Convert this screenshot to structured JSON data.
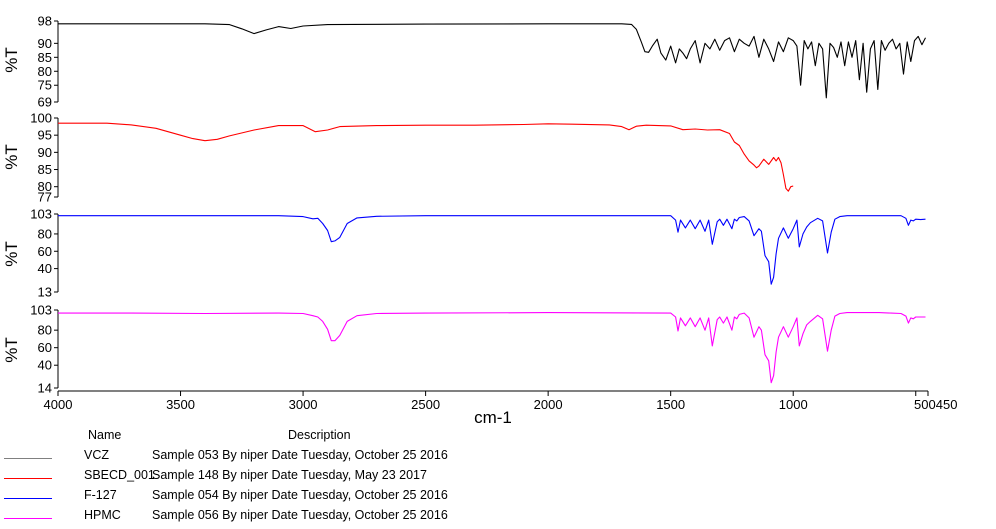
{
  "chart_data": {
    "type": "line",
    "x_label": "cm-1",
    "x_ticks": [
      "4000",
      "3500",
      "3000",
      "2500",
      "2000",
      "1500",
      "1000",
      "500450"
    ],
    "x_range": [
      4000,
      450
    ],
    "panels": [
      {
        "name": "VCZ",
        "color": "#000000",
        "ylabel": "%T",
        "y_ticks": [
          "98",
          "90",
          "85",
          "80",
          "75",
          "69"
        ],
        "y_range": [
          69,
          98
        ],
        "x": [
          4000,
          3700,
          3400,
          3300,
          3250,
          3200,
          3150,
          3100,
          3050,
          3000,
          2900,
          2800,
          2500,
          2000,
          1700,
          1660,
          1640,
          1620,
          1605,
          1590,
          1575,
          1555,
          1540,
          1520,
          1500,
          1480,
          1465,
          1450,
          1435,
          1420,
          1400,
          1380,
          1360,
          1340,
          1320,
          1300,
          1280,
          1260,
          1240,
          1220,
          1200,
          1180,
          1160,
          1140,
          1120,
          1100,
          1080,
          1060,
          1040,
          1020,
          1000,
          985,
          970,
          955,
          940,
          925,
          910,
          895,
          880,
          865,
          850,
          835,
          820,
          805,
          790,
          775,
          760,
          745,
          730,
          715,
          700,
          685,
          670,
          655,
          640,
          625,
          610,
          595,
          580,
          565,
          550,
          535,
          520,
          505,
          490,
          475,
          460
        ],
        "y": [
          97,
          97,
          97,
          96.7,
          95.2,
          93.5,
          94.8,
          96,
          95.3,
          96.2,
          96.7,
          96.8,
          96.9,
          97,
          97,
          96.8,
          95,
          90.5,
          87,
          86.8,
          89,
          91.5,
          86.5,
          84,
          89,
          83,
          88,
          86.5,
          84.5,
          88,
          91,
          83,
          90,
          88,
          91.5,
          87.5,
          91,
          92,
          87,
          91.5,
          90,
          89,
          92.5,
          85,
          91.5,
          88,
          83.5,
          90.5,
          87,
          92,
          91,
          89,
          75,
          91,
          88,
          90.5,
          82,
          90,
          88,
          70.5,
          90,
          88.5,
          85,
          90.5,
          82,
          90.5,
          85,
          91,
          77,
          90,
          72.5,
          88,
          91,
          73.5,
          91,
          87.5,
          90,
          91.5,
          88,
          90,
          79,
          90.5,
          83.5,
          91,
          92.5,
          89.5,
          92
        ]
      },
      {
        "name": "SBECD_001",
        "color": "#ff0000",
        "ylabel": "%T",
        "y_ticks": [
          "100",
          "95",
          "90",
          "85",
          "80",
          "77"
        ],
        "y_range": [
          77,
          100
        ],
        "x": [
          4000,
          3900,
          3800,
          3700,
          3600,
          3500,
          3450,
          3400,
          3350,
          3300,
          3200,
          3100,
          3000,
          2950,
          2900,
          2850,
          2700,
          2500,
          2300,
          2100,
          2000,
          1900,
          1750,
          1700,
          1670,
          1640,
          1600,
          1500,
          1450,
          1400,
          1350,
          1300,
          1260,
          1240,
          1220,
          1200,
          1180,
          1160,
          1150,
          1140,
          1120,
          1100,
          1080,
          1070,
          1060,
          1050,
          1040,
          1030,
          1020,
          1010,
          1000
        ],
        "y": [
          98.5,
          98.5,
          98.5,
          98,
          97,
          95,
          94,
          93.4,
          93.8,
          94.8,
          96.5,
          97.8,
          97.8,
          96,
          96.5,
          97.5,
          97.8,
          97.9,
          97.9,
          98.1,
          98.3,
          98.2,
          98,
          97.5,
          96.6,
          97.6,
          97.9,
          97.7,
          96.6,
          96.8,
          96.5,
          96.6,
          95.5,
          93,
          92,
          89.5,
          87.5,
          86.3,
          85.5,
          86,
          88,
          86.5,
          88.5,
          87.5,
          88.5,
          87,
          83.5,
          79.5,
          78.7,
          80,
          80.2
        ]
      },
      {
        "name": "F-127",
        "color": "#0000ff",
        "ylabel": "%T",
        "y_ticks": [
          "103",
          "80",
          "60",
          "40",
          "13"
        ],
        "y_range": [
          13,
          103
        ],
        "x": [
          4000,
          3700,
          3400,
          3100,
          3000,
          2960,
          2940,
          2920,
          2900,
          2885,
          2870,
          2850,
          2820,
          2780,
          2700,
          2500,
          2000,
          1500,
          1480,
          1470,
          1460,
          1440,
          1420,
          1400,
          1380,
          1360,
          1345,
          1330,
          1310,
          1300,
          1285,
          1270,
          1250,
          1240,
          1230,
          1220,
          1200,
          1180,
          1160,
          1150,
          1140,
          1130,
          1115,
          1100,
          1090,
          1080,
          1070,
          1060,
          1040,
          1020,
          1000,
          985,
          975,
          960,
          945,
          930,
          900,
          880,
          860,
          845,
          830,
          810,
          780,
          740,
          700,
          650,
          600,
          560,
          540,
          530,
          520,
          510,
          500,
          480,
          460
        ],
        "y": [
          101,
          101,
          101,
          101,
          100,
          97.5,
          98,
          92,
          84,
          71,
          72,
          76,
          92,
          98.5,
          100.3,
          101,
          101,
          101,
          96,
          82,
          96,
          87,
          96,
          86,
          96,
          83,
          96,
          68,
          94,
          97,
          90,
          97,
          86,
          97,
          95,
          99,
          100,
          95,
          78,
          82,
          86,
          83,
          55,
          48,
          22,
          30,
          57,
          75,
          87,
          75,
          86,
          96,
          65,
          80,
          88,
          93,
          98,
          95,
          58,
          82,
          97,
          100,
          101,
          101,
          101,
          101,
          101,
          101,
          98,
          90,
          96,
          95,
          97,
          96.5,
          97
        ]
      },
      {
        "name": "HPMC",
        "color": "#ff00ff",
        "ylabel": "%T",
        "y_ticks": [
          "103",
          "80",
          "60",
          "40",
          "14"
        ],
        "y_range": [
          14,
          103
        ],
        "x": [
          4000,
          3700,
          3400,
          3100,
          3000,
          2960,
          2940,
          2920,
          2900,
          2885,
          2870,
          2850,
          2820,
          2780,
          2700,
          2500,
          2000,
          1500,
          1480,
          1470,
          1460,
          1440,
          1420,
          1400,
          1380,
          1360,
          1345,
          1330,
          1310,
          1300,
          1285,
          1270,
          1250,
          1240,
          1230,
          1220,
          1200,
          1180,
          1160,
          1150,
          1140,
          1130,
          1115,
          1100,
          1090,
          1080,
          1070,
          1060,
          1040,
          1020,
          1000,
          985,
          975,
          960,
          945,
          930,
          900,
          880,
          860,
          845,
          830,
          810,
          780,
          740,
          700,
          650,
          600,
          560,
          540,
          530,
          520,
          510,
          500,
          480,
          460
        ],
        "y": [
          99.5,
          99.5,
          99,
          99.5,
          99,
          96.5,
          95,
          90,
          81,
          68,
          68,
          74,
          90,
          96.5,
          99,
          99.5,
          100,
          99.5,
          95,
          79,
          94,
          85,
          94,
          84,
          94,
          80,
          94,
          62,
          92,
          95,
          88,
          95,
          80,
          95,
          93,
          98,
          99.5,
          94,
          72,
          78,
          84,
          80,
          52,
          45,
          20,
          28,
          55,
          72,
          84,
          72,
          84,
          94,
          62,
          76,
          86,
          90,
          97,
          93,
          56,
          80,
          96,
          99,
          100,
          100,
          100,
          100,
          99.5,
          99,
          96,
          88,
          94,
          93,
          95,
          95,
          95
        ]
      }
    ]
  },
  "legend": {
    "header_name": "Name",
    "header_description": "Description",
    "rows": [
      {
        "name": "VCZ",
        "description": "Sample 053 By niper Date Tuesday, October 25 2016",
        "color": "#000000"
      },
      {
        "name": "SBECD_001",
        "description": "Sample 148 By niper Date Tuesday, May 23 2017",
        "color": "#ff0000"
      },
      {
        "name": "F-127",
        "description": "Sample 054 By niper Date Tuesday, October 25 2016",
        "color": "#0000ff"
      },
      {
        "name": "HPMC",
        "description": "Sample 056 By niper Date Tuesday, October 25 2016",
        "color": "#ff00ff"
      }
    ]
  }
}
